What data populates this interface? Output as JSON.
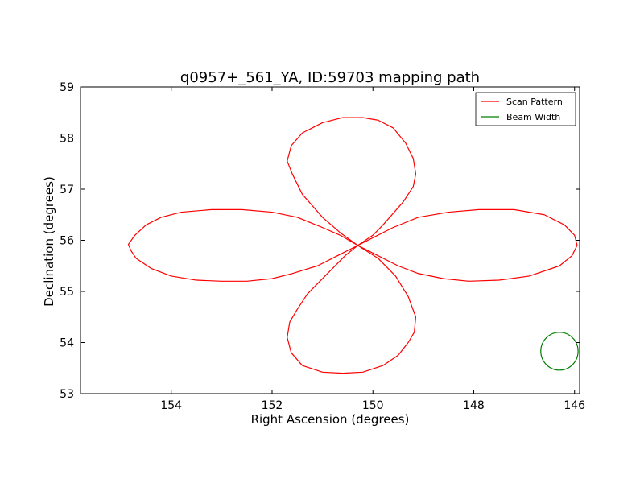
{
  "chart_data": {
    "type": "line",
    "title": "q0957+_561_YA, ID:59703 mapping path",
    "xlabel": "Right Ascension (degrees)",
    "ylabel": "Declination (degrees)",
    "xlim": [
      155.8,
      145.9
    ],
    "ylim": [
      53,
      59
    ],
    "x_ticks": [
      154,
      152,
      150,
      148,
      146
    ],
    "x_tick_labels": [
      "154",
      "152",
      "150",
      "148",
      "146"
    ],
    "y_ticks": [
      53,
      54,
      55,
      56,
      57,
      58,
      59
    ],
    "y_tick_labels": [
      "53",
      "54",
      "55",
      "56",
      "57",
      "58",
      "59"
    ],
    "grid": false,
    "legend_position": "top-right",
    "series": [
      {
        "name": "Scan Pattern",
        "color": "#ff0000",
        "x": [
          150.3,
          150.65,
          151.0,
          151.4,
          151.6,
          151.7,
          151.62,
          151.4,
          151.0,
          150.6,
          150.2,
          149.9,
          149.6,
          149.35,
          149.2,
          149.15,
          149.2,
          149.4,
          149.8,
          150.0,
          150.3,
          150.65,
          151.0,
          151.5,
          152.0,
          152.6,
          153.2,
          153.8,
          154.2,
          154.5,
          154.72,
          154.85,
          154.8,
          154.7,
          154.4,
          154.0,
          153.5,
          153.0,
          152.5,
          152.0,
          151.6,
          151.1,
          150.7,
          150.3,
          150.0,
          149.6,
          149.1,
          148.5,
          147.9,
          147.2,
          146.6,
          146.2,
          146.0,
          145.95,
          146.05,
          146.3,
          146.9,
          147.5,
          148.1,
          148.6,
          149.1,
          149.5,
          149.9,
          150.3,
          150.55,
          150.8,
          151.1,
          151.3,
          151.5,
          151.65,
          151.7,
          151.62,
          151.4,
          151.0,
          150.6,
          150.2,
          149.8,
          149.5,
          149.3,
          149.18,
          149.15,
          149.3,
          149.55,
          149.9,
          150.3
        ],
        "y": [
          55.9,
          56.15,
          56.45,
          56.9,
          57.3,
          57.55,
          57.85,
          58.1,
          58.3,
          58.4,
          58.4,
          58.35,
          58.2,
          57.9,
          57.6,
          57.3,
          57.05,
          56.75,
          56.3,
          56.1,
          55.9,
          56.1,
          56.25,
          56.45,
          56.55,
          56.6,
          56.6,
          56.55,
          56.45,
          56.3,
          56.1,
          55.92,
          55.8,
          55.65,
          55.45,
          55.3,
          55.22,
          55.2,
          55.2,
          55.25,
          55.35,
          55.5,
          55.7,
          55.9,
          56.05,
          56.25,
          56.45,
          56.55,
          56.6,
          56.6,
          56.5,
          56.3,
          56.1,
          55.9,
          55.7,
          55.5,
          55.3,
          55.22,
          55.2,
          55.25,
          55.35,
          55.5,
          55.7,
          55.9,
          55.7,
          55.45,
          55.15,
          54.95,
          54.65,
          54.4,
          54.1,
          53.8,
          53.55,
          53.42,
          53.4,
          53.42,
          53.55,
          53.75,
          54.0,
          54.2,
          54.5,
          54.9,
          55.3,
          55.65,
          55.9
        ]
      },
      {
        "name": "Beam Width",
        "color": "#008000",
        "shape": "circle",
        "center": [
          146.3,
          53.83
        ],
        "radius_deg": 0.37
      }
    ]
  }
}
